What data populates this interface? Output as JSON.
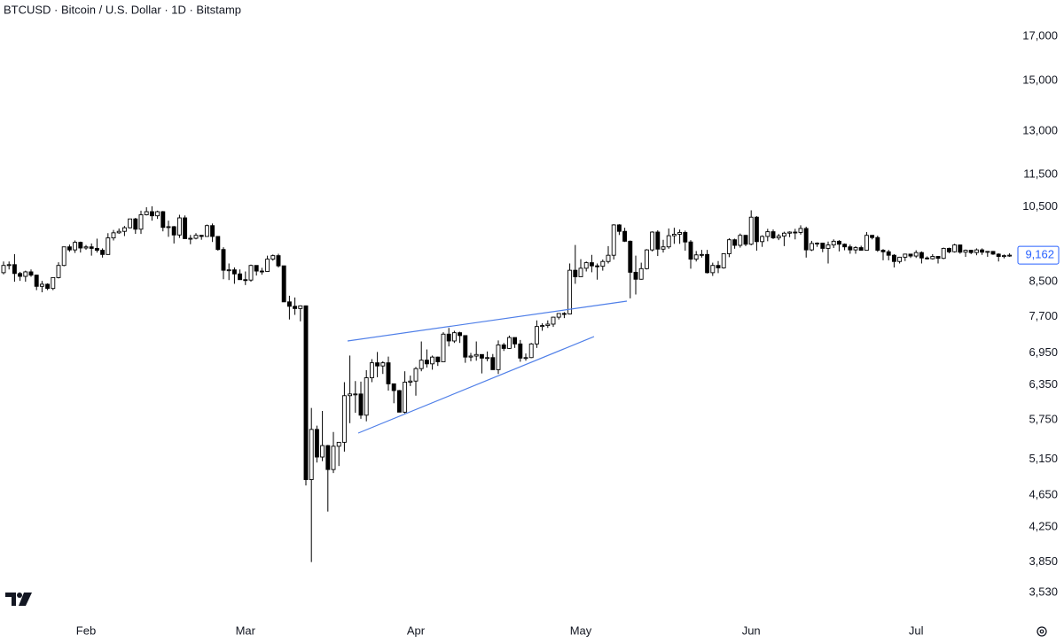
{
  "chart_data": {
    "type": "candlestick",
    "title": "BTCUSD · Bitcoin / U.S. Dollar · 1D · Bitstamp",
    "log_scale": true,
    "up_color": "#ffffff",
    "down_color": "#000000",
    "outline_color": "#000000",
    "ylim": [
      3310,
      18840
    ],
    "yticks": [
      {
        "value": 3530,
        "label": "3,530"
      },
      {
        "value": 3850,
        "label": "3,850"
      },
      {
        "value": 4250,
        "label": "4,250"
      },
      {
        "value": 4650,
        "label": "4,650"
      },
      {
        "value": 5150,
        "label": "5,150"
      },
      {
        "value": 5750,
        "label": "5,750"
      },
      {
        "value": 6350,
        "label": "6,350"
      },
      {
        "value": 6950,
        "label": "6,950"
      },
      {
        "value": 7700,
        "label": "7,700"
      },
      {
        "value": 8500,
        "label": "8,500"
      },
      {
        "value": 10500,
        "label": "10,500"
      },
      {
        "value": 11500,
        "label": "11,500"
      },
      {
        "value": 13000,
        "label": "13,000"
      },
      {
        "value": 15000,
        "label": "15,000"
      },
      {
        "value": 17000,
        "label": "17,000"
      }
    ],
    "last_price": {
      "value": 9162,
      "label": "9,162",
      "color": "#2962ff"
    },
    "categories": [
      null,
      null,
      null,
      null,
      null,
      null,
      null,
      null,
      null,
      null,
      null,
      null,
      null,
      null,
      null,
      "Feb",
      null,
      null,
      null,
      null,
      null,
      null,
      null,
      null,
      null,
      null,
      null,
      null,
      null,
      null,
      null,
      null,
      null,
      null,
      null,
      null,
      null,
      null,
      null,
      null,
      null,
      null,
      null,
      null,
      "Mar",
      null,
      null,
      null,
      null,
      null,
      null,
      null,
      null,
      null,
      null,
      null,
      null,
      null,
      null,
      null,
      null,
      null,
      null,
      null,
      null,
      null,
      null,
      null,
      null,
      null,
      null,
      null,
      null,
      null,
      null,
      "Apr",
      null,
      null,
      null,
      null,
      null,
      null,
      null,
      null,
      null,
      null,
      null,
      null,
      null,
      null,
      null,
      null,
      null,
      null,
      null,
      null,
      null,
      null,
      null,
      null,
      null,
      null,
      null,
      null,
      null,
      "May",
      null,
      null,
      null,
      null,
      null,
      null,
      null,
      null,
      null,
      null,
      null,
      null,
      null,
      null,
      null,
      null,
      null,
      null,
      null,
      null,
      null,
      null,
      null,
      null,
      null,
      null,
      null,
      null,
      null,
      null,
      "Jun",
      null,
      null,
      null,
      null,
      null,
      null,
      null,
      null,
      null,
      null,
      null,
      null,
      null,
      null,
      null,
      null,
      null,
      null,
      null,
      null,
      null,
      null,
      null,
      null,
      null,
      null,
      null,
      null,
      null,
      "Jul",
      null,
      null,
      null,
      null,
      null,
      null,
      null,
      null,
      null,
      null,
      null,
      null,
      null,
      null,
      null,
      null,
      null
    ],
    "open": [
      8720,
      8900,
      8920,
      8700,
      8630,
      8740,
      8660,
      8390,
      8440,
      8340,
      8600,
      8900,
      9380,
      9300,
      9500,
      9350,
      9380,
      9340,
      9290,
      9180,
      9620,
      9760,
      9800,
      9900,
      10150,
      9860,
      10270,
      10360,
      10240,
      10360,
      9910,
      9930,
      9700,
      10180,
      9600,
      9610,
      9690,
      9660,
      9960,
      9660,
      9310,
      8780,
      8790,
      8690,
      8550,
      8540,
      8900,
      8760,
      8750,
      9060,
      9150,
      8890,
      8030,
      7930,
      7880,
      7940,
      4860,
      5600,
      5180,
      5350,
      5000,
      5340,
      5400,
      6160,
      6190,
      6190,
      5830,
      6480,
      6760,
      6700,
      6760,
      6370,
      6250,
      5880,
      6400,
      6420,
      6650,
      6810,
      6740,
      6870,
      6780,
      7330,
      7190,
      7360,
      7300,
      6870,
      6890,
      6920,
      6850,
      6860,
      6630,
      7110,
      7040,
      7260,
      7130,
      6850,
      6860,
      7130,
      7490,
      7510,
      7540,
      7690,
      7770,
      7760,
      8780,
      8620,
      8830,
      8970,
      8890,
      8880,
      9000,
      9160,
      9980,
      9800,
      9530,
      8730,
      8560,
      8820,
      9300,
      9780,
      9320,
      9380,
      9680,
      9720,
      9770,
      9510,
      9060,
      9170,
      9180,
      8720,
      8900,
      8840,
      9200,
      9570,
      9420,
      9690,
      9450,
      10200,
      9520,
      9660,
      9790,
      9620,
      9670,
      9750,
      9780,
      9770,
      9880,
      9300,
      9470,
      9480,
      9340,
      9430,
      9530,
      9450,
      9380,
      9300,
      9360,
      9290,
      9690,
      9630,
      9290,
      9250,
      9160,
      9000,
      9110,
      9190,
      9140,
      9230,
      9090,
      9070,
      9130,
      9080,
      9340,
      9250,
      9430,
      9240,
      9290,
      9230,
      9300,
      9240,
      9260,
      9190,
      9130,
      9150
    ],
    "high": [
      9000,
      9000,
      9190,
      8740,
      8770,
      8800,
      8670,
      8520,
      8460,
      8600,
      8980,
      9380,
      9440,
      9550,
      9520,
      9430,
      9470,
      9600,
      9340,
      9750,
      9840,
      9880,
      9950,
      10150,
      10180,
      10390,
      10490,
      10520,
      10390,
      10380,
      10100,
      9950,
      10270,
      10250,
      9700,
      9750,
      9700,
      9990,
      10020,
      9660,
      9370,
      8950,
      8850,
      8800,
      8750,
      8920,
      8900,
      8840,
      9150,
      9180,
      9200,
      8890,
      8170,
      8130,
      7950,
      7950,
      5950,
      5660,
      5900,
      5360,
      5560,
      5400,
      6400,
      6900,
      6420,
      6410,
      6620,
      6830,
      6970,
      6790,
      6880,
      6370,
      6260,
      6600,
      6520,
      6680,
      7180,
      7020,
      6900,
      6880,
      7370,
      7460,
      7400,
      7380,
      7300,
      6950,
      7180,
      6920,
      6980,
      6930,
      7200,
      7150,
      7300,
      7260,
      7210,
      6940,
      7150,
      7620,
      7560,
      7620,
      7700,
      7770,
      7800,
      8950,
      9430,
      9060,
      9000,
      9170,
      8950,
      9050,
      9400,
      10000,
      10000,
      9900,
      9550,
      9150,
      8970,
      9320,
      9800,
      9830,
      9570,
      9880,
      9900,
      9850,
      9820,
      9560,
      9270,
      9300,
      9300,
      8970,
      9010,
      9200,
      9610,
      9600,
      9740,
      9700,
      10400,
      10230,
      9690,
      9870,
      9850,
      9730,
      9790,
      9800,
      9870,
      9970,
      9930,
      9540,
      9500,
      9490,
      9520,
      9580,
      9560,
      9470,
      9440,
      9400,
      9410,
      9780,
      9700,
      9680,
      9320,
      9300,
      9190,
      9120,
      9200,
      9200,
      9290,
      9260,
      9130,
      9190,
      9140,
      9360,
      9360,
      9460,
      9440,
      9310,
      9300,
      9340,
      9340,
      9270,
      9270,
      9210,
      9180,
      9210
    ],
    "low": [
      8680,
      8800,
      8500,
      8520,
      8500,
      8620,
      8300,
      8250,
      8300,
      8300,
      8580,
      8880,
      9250,
      9220,
      9230,
      9300,
      9150,
      9230,
      9100,
      9170,
      9550,
      9730,
      9670,
      9880,
      9730,
      9730,
      10250,
      10100,
      10150,
      9800,
      9650,
      9470,
      9620,
      9600,
      9450,
      9580,
      9570,
      9650,
      9510,
      9280,
      8560,
      8540,
      8450,
      8550,
      8420,
      8500,
      8650,
      8670,
      8750,
      9020,
      8850,
      8060,
      7640,
      7740,
      7600,
      4780,
      3850,
      5100,
      5120,
      4440,
      4950,
      5050,
      5260,
      5700,
      5870,
      5770,
      5730,
      6400,
      6490,
      6550,
      6250,
      6030,
      5880,
      5860,
      6330,
      6160,
      6600,
      6670,
      6630,
      6700,
      6780,
      7080,
      7150,
      7150,
      6760,
      6790,
      6800,
      6560,
      6790,
      6630,
      6550,
      6990,
      7030,
      7050,
      6780,
      6800,
      6850,
      7050,
      7400,
      7460,
      7480,
      7640,
      7670,
      7750,
      8450,
      8620,
      8750,
      8730,
      8550,
      8770,
      8950,
      9050,
      9700,
      9510,
      8110,
      8200,
      8550,
      8800,
      9260,
      9140,
      9230,
      9330,
      9460,
      9460,
      9280,
      8820,
      9000,
      9100,
      8700,
      8640,
      8710,
      8820,
      9110,
      9330,
      9360,
      9400,
      9420,
      9280,
      9380,
      9530,
      9590,
      9560,
      9400,
      9640,
      9580,
      9710,
      9100,
      9270,
      9380,
      9240,
      8950,
      9350,
      9260,
      9290,
      9200,
      9200,
      9280,
      9290,
      9580,
      9250,
      9030,
      9030,
      8850,
      8950,
      9010,
      9090,
      9090,
      8950,
      9050,
      9050,
      8950,
      9060,
      9210,
      9230,
      9200,
      9120,
      9190,
      9160,
      9170,
      9120,
      9170,
      9000,
      9080,
      9120
    ],
    "close": [
      8900,
      8920,
      8700,
      8630,
      8740,
      8660,
      8390,
      8440,
      8340,
      8600,
      8900,
      9380,
      9300,
      9500,
      9350,
      9380,
      9340,
      9290,
      9180,
      9620,
      9760,
      9800,
      9900,
      10150,
      9860,
      10270,
      10360,
      10240,
      10360,
      9910,
      9930,
      9700,
      10180,
      9600,
      9610,
      9690,
      9660,
      9960,
      9660,
      9310,
      8780,
      8790,
      8690,
      8550,
      8540,
      8900,
      8760,
      8750,
      9060,
      9150,
      8890,
      8030,
      7930,
      7880,
      7940,
      4860,
      5600,
      5180,
      5350,
      5000,
      5340,
      5400,
      6160,
      6190,
      6190,
      5830,
      6480,
      6760,
      6700,
      6760,
      6370,
      6250,
      5880,
      6400,
      6420,
      6650,
      6810,
      6740,
      6870,
      6780,
      7330,
      7190,
      7360,
      7300,
      6870,
      6890,
      6920,
      6850,
      6860,
      6630,
      7110,
      7040,
      7260,
      7130,
      6850,
      6860,
      7130,
      7490,
      7510,
      7540,
      7690,
      7770,
      7760,
      8780,
      8620,
      8830,
      8970,
      8890,
      8880,
      9000,
      9160,
      9980,
      9800,
      9530,
      8730,
      8560,
      8820,
      9300,
      9780,
      9320,
      9380,
      9680,
      9720,
      9770,
      9510,
      9060,
      9170,
      9180,
      8720,
      8900,
      8840,
      9200,
      9570,
      9420,
      9690,
      9450,
      10200,
      9520,
      9660,
      9790,
      9620,
      9670,
      9750,
      9780,
      9770,
      9880,
      9300,
      9470,
      9480,
      9340,
      9430,
      9530,
      9450,
      9380,
      9300,
      9360,
      9290,
      9690,
      9630,
      9290,
      9250,
      9160,
      9000,
      9110,
      9190,
      9140,
      9230,
      9090,
      9070,
      9130,
      9080,
      9340,
      9250,
      9430,
      9240,
      9290,
      9230,
      9300,
      9240,
      9260,
      9190,
      9130,
      9150,
      9162
    ]
  }
}
